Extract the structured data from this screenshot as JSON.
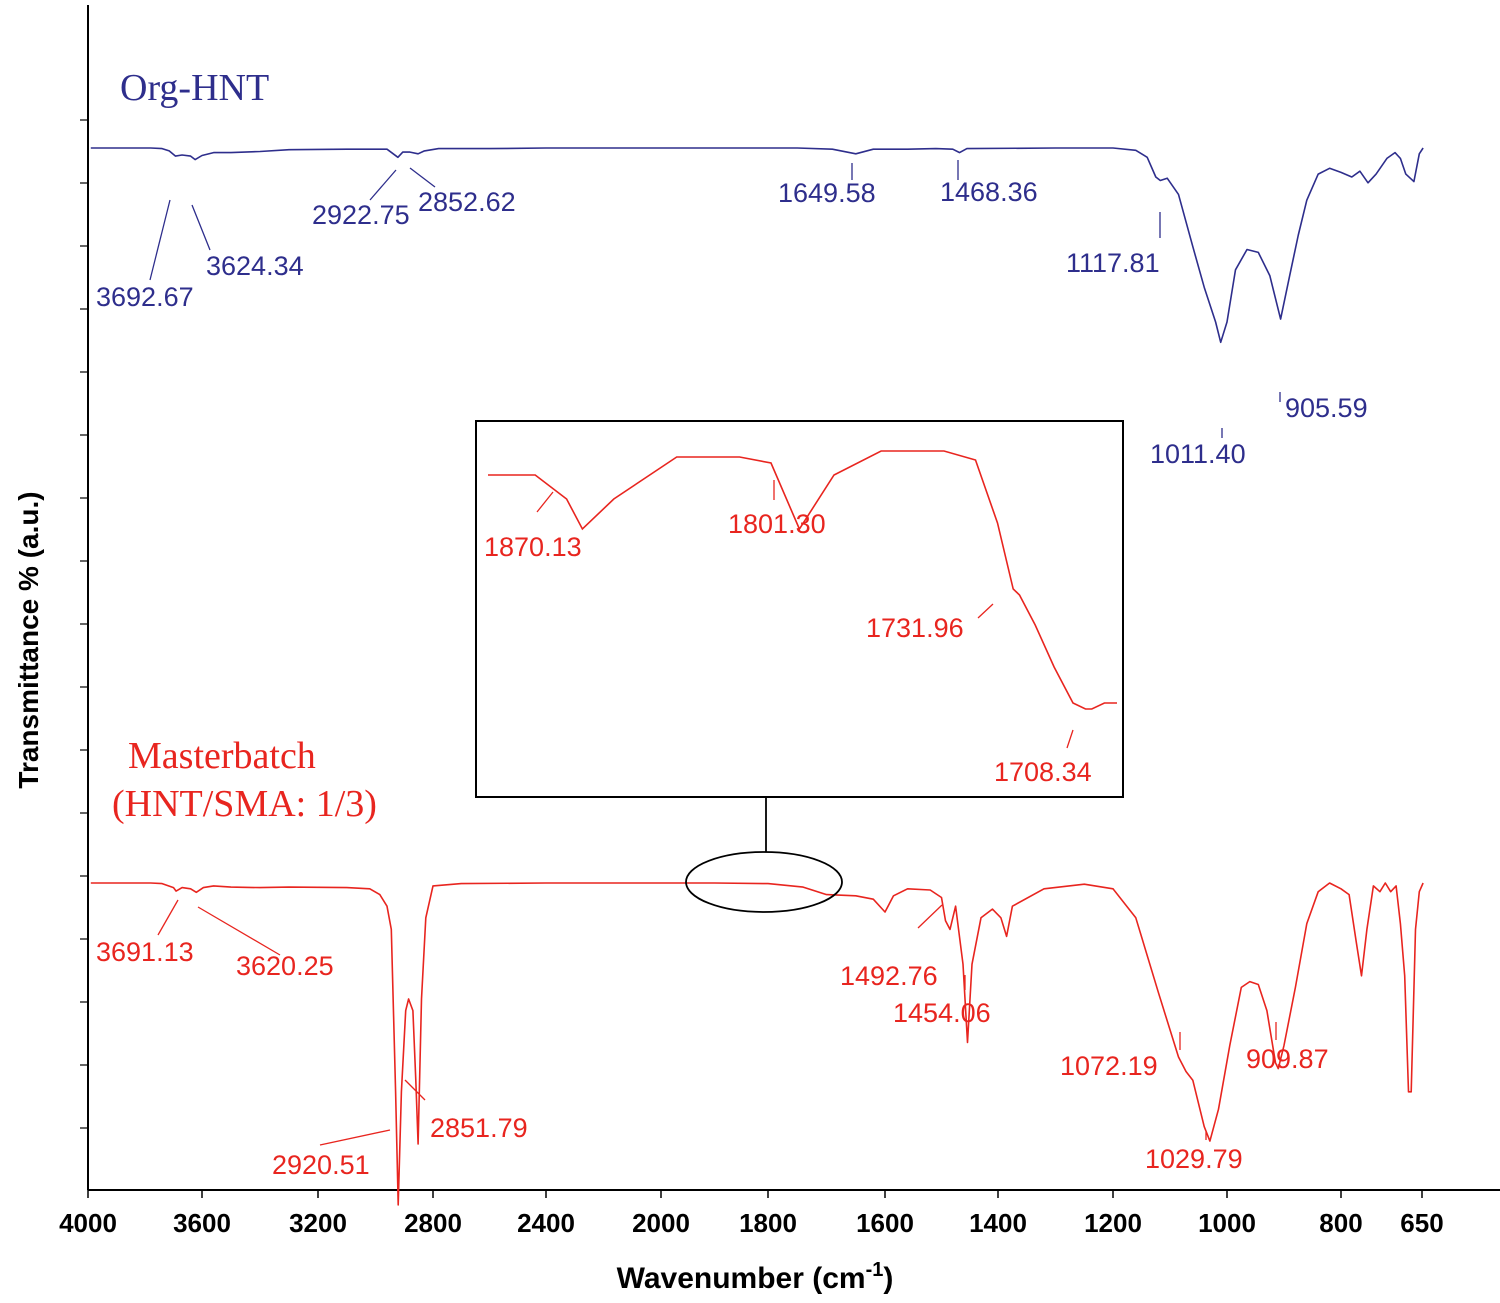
{
  "chart_data": {
    "type": "line",
    "title": "",
    "xlabel": "Wavenumber (cm",
    "xlabel_superscript": "-1",
    "xlabel_close": ")",
    "ylabel": "Transmittance % (a.u.)",
    "xlim": [
      4000,
      650
    ],
    "x_ticks": [
      4000,
      3600,
      3200,
      2800,
      2400,
      2000,
      1800,
      1600,
      1400,
      1200,
      1000,
      800,
      650
    ],
    "grid": false,
    "colors": {
      "org": "#2e2e8c",
      "master": "#e8251f",
      "axis": "#000000"
    },
    "series": [
      {
        "name": "Org-HNT",
        "label_lines": [
          "Org-HNT"
        ],
        "points": [
          [
            3990,
            1.0
          ],
          [
            3780,
            1.0
          ],
          [
            3740,
            0.99
          ],
          [
            3715,
            0.95
          ],
          [
            3693,
            0.86
          ],
          [
            3670,
            0.88
          ],
          [
            3640,
            0.86
          ],
          [
            3624,
            0.8
          ],
          [
            3600,
            0.87
          ],
          [
            3560,
            0.92
          ],
          [
            3500,
            0.92
          ],
          [
            3400,
            0.94
          ],
          [
            3300,
            0.97
          ],
          [
            3100,
            0.98
          ],
          [
            2960,
            0.98
          ],
          [
            2922,
            0.84
          ],
          [
            2905,
            0.93
          ],
          [
            2880,
            0.93
          ],
          [
            2852,
            0.9
          ],
          [
            2830,
            0.95
          ],
          [
            2780,
            0.99
          ],
          [
            2600,
            0.99
          ],
          [
            2400,
            1.0
          ],
          [
            2000,
            1.0
          ],
          [
            1750,
            1.0
          ],
          [
            1690,
            0.98
          ],
          [
            1650,
            0.9
          ],
          [
            1620,
            0.98
          ],
          [
            1560,
            0.98
          ],
          [
            1510,
            0.99
          ],
          [
            1480,
            0.98
          ],
          [
            1468,
            0.92
          ],
          [
            1455,
            0.99
          ],
          [
            1300,
            1.0
          ],
          [
            1200,
            1.0
          ],
          [
            1160,
            0.96
          ],
          [
            1140,
            0.84
          ],
          [
            1125,
            0.5
          ],
          [
            1117,
            0.44
          ],
          [
            1105,
            0.48
          ],
          [
            1085,
            0.2
          ],
          [
            1060,
            -0.7
          ],
          [
            1040,
            -1.4
          ],
          [
            1020,
            -2.0
          ],
          [
            1011,
            -2.35
          ],
          [
            1000,
            -2.0
          ],
          [
            985,
            -1.1
          ],
          [
            965,
            -0.75
          ],
          [
            945,
            -0.8
          ],
          [
            925,
            -1.2
          ],
          [
            906,
            -1.95
          ],
          [
            890,
            -1.2
          ],
          [
            875,
            -0.5
          ],
          [
            860,
            0.1
          ],
          [
            840,
            0.55
          ],
          [
            820,
            0.65
          ],
          [
            800,
            0.58
          ],
          [
            780,
            0.5
          ],
          [
            765,
            0.6
          ],
          [
            750,
            0.4
          ],
          [
            735,
            0.55
          ],
          [
            715,
            0.82
          ],
          [
            700,
            0.92
          ],
          [
            690,
            0.82
          ],
          [
            680,
            0.55
          ],
          [
            665,
            0.42
          ],
          [
            655,
            0.9
          ],
          [
            648,
            1.0
          ]
        ]
      },
      {
        "name": "Masterbatch (HNT/SMA: 1/3)",
        "label_lines": [
          "Masterbatch",
          "(HNT/SMA: 1/3)"
        ],
        "points": [
          [
            3990,
            1.0
          ],
          [
            3780,
            1.0
          ],
          [
            3740,
            0.99
          ],
          [
            3700,
            0.92
          ],
          [
            3691,
            0.86
          ],
          [
            3670,
            0.92
          ],
          [
            3640,
            0.9
          ],
          [
            3620,
            0.84
          ],
          [
            3595,
            0.92
          ],
          [
            3560,
            0.95
          ],
          [
            3500,
            0.93
          ],
          [
            3400,
            0.92
          ],
          [
            3300,
            0.93
          ],
          [
            3100,
            0.92
          ],
          [
            3020,
            0.9
          ],
          [
            2985,
            0.8
          ],
          [
            2960,
            0.6
          ],
          [
            2945,
            0.2
          ],
          [
            2930,
            -2.6
          ],
          [
            2921,
            -4.55
          ],
          [
            2910,
            -2.6
          ],
          [
            2895,
            -1.2
          ],
          [
            2885,
            -1.0
          ],
          [
            2870,
            -1.2
          ],
          [
            2860,
            -2.4
          ],
          [
            2852,
            -3.5
          ],
          [
            2840,
            -1.0
          ],
          [
            2825,
            0.4
          ],
          [
            2800,
            0.95
          ],
          [
            2700,
            0.99
          ],
          [
            2400,
            1.0
          ],
          [
            2000,
            1.0
          ],
          [
            1900,
            1.0
          ],
          [
            1800,
            0.99
          ],
          [
            1740,
            0.93
          ],
          [
            1700,
            0.8
          ],
          [
            1650,
            0.78
          ],
          [
            1620,
            0.72
          ],
          [
            1600,
            0.5
          ],
          [
            1585,
            0.78
          ],
          [
            1560,
            0.9
          ],
          [
            1520,
            0.88
          ],
          [
            1500,
            0.75
          ],
          [
            1493,
            0.35
          ],
          [
            1485,
            0.2
          ],
          [
            1475,
            0.6
          ],
          [
            1462,
            -0.4
          ],
          [
            1454,
            -1.75
          ],
          [
            1446,
            -0.4
          ],
          [
            1430,
            0.4
          ],
          [
            1410,
            0.55
          ],
          [
            1395,
            0.4
          ],
          [
            1385,
            0.08
          ],
          [
            1375,
            0.6
          ],
          [
            1320,
            0.9
          ],
          [
            1250,
            0.98
          ],
          [
            1200,
            0.9
          ],
          [
            1160,
            0.4
          ],
          [
            1120,
            -0.9
          ],
          [
            1085,
            -2.0
          ],
          [
            1072,
            -2.25
          ],
          [
            1060,
            -2.4
          ],
          [
            1040,
            -3.2
          ],
          [
            1030,
            -3.45
          ],
          [
            1015,
            -2.9
          ],
          [
            995,
            -1.8
          ],
          [
            975,
            -0.8
          ],
          [
            960,
            -0.7
          ],
          [
            945,
            -0.75
          ],
          [
            930,
            -1.2
          ],
          [
            915,
            -2.1
          ],
          [
            910,
            -2.2
          ],
          [
            900,
            -1.8
          ],
          [
            880,
            -0.8
          ],
          [
            860,
            0.3
          ],
          [
            840,
            0.85
          ],
          [
            820,
            1.0
          ],
          [
            800,
            0.9
          ],
          [
            785,
            0.8
          ],
          [
            772,
            0.0
          ],
          [
            762,
            -0.6
          ],
          [
            752,
            0.2
          ],
          [
            740,
            0.95
          ],
          [
            728,
            0.85
          ],
          [
            718,
            1.0
          ],
          [
            708,
            0.85
          ],
          [
            698,
            0.95
          ],
          [
            690,
            0.3
          ],
          [
            682,
            -0.6
          ],
          [
            675,
            -2.6
          ],
          [
            670,
            -2.6
          ],
          [
            662,
            0.2
          ],
          [
            655,
            0.85
          ],
          [
            648,
            1.0
          ]
        ]
      }
    ],
    "annotations": [
      {
        "series": "Org-HNT",
        "text": "3692.67"
      },
      {
        "series": "Org-HNT",
        "text": "3624.34"
      },
      {
        "series": "Org-HNT",
        "text": "2922.75"
      },
      {
        "series": "Org-HNT",
        "text": "2852.62"
      },
      {
        "series": "Org-HNT",
        "text": "1649.58"
      },
      {
        "series": "Org-HNT",
        "text": "1468.36"
      },
      {
        "series": "Org-HNT",
        "text": "1117.81"
      },
      {
        "series": "Org-HNT",
        "text": "1011.40"
      },
      {
        "series": "Org-HNT",
        "text": "905.59"
      },
      {
        "series": "Masterbatch",
        "text": "3691.13"
      },
      {
        "series": "Masterbatch",
        "text": "3620.25"
      },
      {
        "series": "Masterbatch",
        "text": "2920.51"
      },
      {
        "series": "Masterbatch",
        "text": "2851.79"
      },
      {
        "series": "Masterbatch",
        "text": "1492.76"
      },
      {
        "series": "Masterbatch",
        "text": "1454.06"
      },
      {
        "series": "Masterbatch",
        "text": "1072.19"
      },
      {
        "series": "Masterbatch",
        "text": "1029.79"
      },
      {
        "series": "Masterbatch",
        "text": "909.87"
      }
    ],
    "inset": {
      "description_region_x": [
        1900,
        1700
      ],
      "points": [
        [
          1900,
          1.0
        ],
        [
          1885,
          1.0
        ],
        [
          1875,
          0.6
        ],
        [
          1870,
          0.1
        ],
        [
          1860,
          0.6
        ],
        [
          1840,
          1.3
        ],
        [
          1820,
          1.3
        ],
        [
          1810,
          1.2
        ],
        [
          1801,
          0.1
        ],
        [
          1790,
          1.0
        ],
        [
          1775,
          1.4
        ],
        [
          1755,
          1.4
        ],
        [
          1745,
          1.25
        ],
        [
          1738,
          0.2
        ],
        [
          1733,
          -0.9
        ],
        [
          1731,
          -1.0
        ],
        [
          1726,
          -1.5
        ],
        [
          1720,
          -2.2
        ],
        [
          1714,
          -2.8
        ],
        [
          1710,
          -2.9
        ],
        [
          1708,
          -2.9
        ],
        [
          1704,
          -2.8
        ],
        [
          1700,
          -2.8
        ]
      ],
      "annotations": [
        {
          "text": "1870.13"
        },
        {
          "text": "1801.30"
        },
        {
          "text": "1731.96"
        },
        {
          "text": "1708.34"
        }
      ]
    }
  }
}
